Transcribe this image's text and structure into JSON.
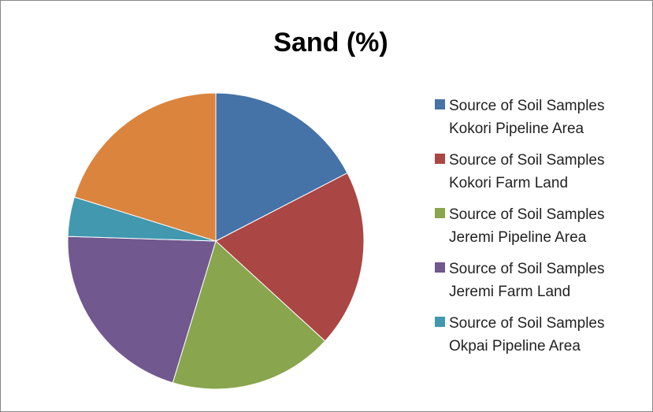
{
  "chart_data": {
    "type": "pie",
    "title": "Sand (%)",
    "categories": [
      "Source of Soil Samples Kokori Pipeline Area",
      "Source of Soil Samples Kokori Farm Land",
      "Source of Soil Samples Jeremi Pipeline Area",
      "Source of Soil Samples Jeremi Farm Land",
      "Source of Soil Samples Okpai Pipeline Area",
      null
    ],
    "values": [
      17.4,
      19.4,
      17.9,
      20.8,
      4.3,
      20.2
    ],
    "colors": [
      "#4572a7",
      "#aa4643",
      "#89a54e",
      "#71588f",
      "#4198af",
      "#db843d"
    ],
    "legend": "right"
  }
}
